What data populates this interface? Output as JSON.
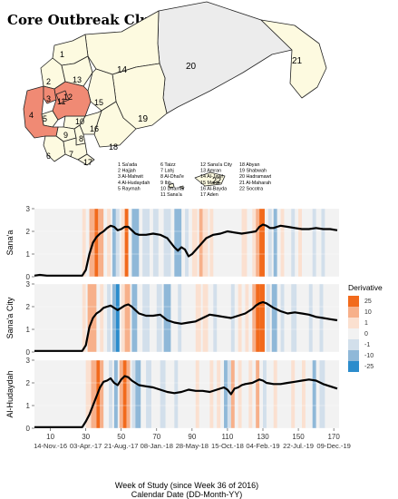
{
  "figure_title": "Core Outbreak Cluster",
  "map": {
    "region_numbers": [
      "1",
      "2",
      "3",
      "4",
      "5",
      "6",
      "7",
      "8",
      "9",
      "10",
      "11",
      "12",
      "13",
      "14",
      "15",
      "16",
      "17",
      "18",
      "19",
      "20",
      "21",
      "22"
    ],
    "highlighted_regions": [
      "3",
      "4",
      "11",
      "12"
    ],
    "legend_col1": [
      "1 Sa'ada",
      "2 Hajjah",
      "3 Al-Mahwit",
      "4 Al-Hudaydah",
      "5 Raymah"
    ],
    "legend_col2": [
      "6 Taizz",
      "7 Lahj",
      "8 Al-Dhal'e",
      "9 Ibb",
      "10 Dhamar",
      "11 Sana'a"
    ],
    "legend_col3": [
      "12 Sana'a City",
      "13 Amran",
      "14 Al-Jawf",
      "15 Marib",
      "16 Al-Bayda",
      "17 Aden"
    ],
    "legend_col4": [
      "18 Abyan",
      "19 Shabwah",
      "20 Hadramawt",
      "21 Al-Maharah",
      "22 Socotra"
    ],
    "colors": {
      "highlight": "#f08a74",
      "base": "#fdfae0",
      "large": "#ececec",
      "outline": "#222222"
    }
  },
  "colorbar": {
    "title": "Derivative",
    "ticks": [
      "25",
      "10",
      "1",
      "0",
      "-1",
      "-10",
      "-25"
    ],
    "colors": [
      "#f26a1c",
      "#f7b08a",
      "#fbe0d0",
      "#f2f2f2",
      "#d2dfeb",
      "#8fb8d8",
      "#2c8ccc"
    ]
  },
  "x_axis": {
    "xlabel_line1": "Week of Study (since Week 36 of 2016)",
    "xlabel_line2": "Calendar Date (DD-Month-YY)",
    "week_ticks": [
      "10",
      "30",
      "50",
      "70",
      "90",
      "110",
      "130",
      "150",
      "170"
    ],
    "date_ticks": [
      "14-Nov.-16",
      "03-Apr.-17",
      "21-Aug.-17",
      "08-Jan.-18",
      "28-May-18",
      "15-Oct.-18",
      "04-Feb.-19",
      "22-Jul.-19",
      "09-Dec.-19"
    ]
  },
  "chart_data": [
    {
      "type": "line",
      "ylabel": "Sana'a",
      "xlim": [
        1,
        173
      ],
      "ylim": [
        0,
        3
      ],
      "yticks": [
        "0",
        "1",
        "2",
        "3"
      ],
      "x": [
        1,
        4,
        8,
        12,
        16,
        20,
        24,
        28,
        30,
        32,
        34,
        36,
        38,
        40,
        42,
        44,
        46,
        48,
        50,
        52,
        54,
        56,
        58,
        60,
        64,
        68,
        72,
        76,
        80,
        82,
        84,
        86,
        88,
        90,
        94,
        98,
        102,
        106,
        110,
        114,
        118,
        122,
        126,
        128,
        130,
        132,
        134,
        136,
        138,
        140,
        144,
        148,
        152,
        156,
        160,
        164,
        168,
        172
      ],
      "y": [
        0.05,
        0.08,
        0.05,
        0.05,
        0.05,
        0.05,
        0.05,
        0.05,
        0.3,
        1.0,
        1.5,
        1.75,
        1.9,
        2.0,
        2.15,
        2.25,
        2.2,
        2.05,
        2.1,
        2.2,
        2.2,
        2.05,
        1.9,
        1.85,
        1.85,
        1.9,
        1.85,
        1.7,
        1.3,
        1.15,
        1.3,
        1.2,
        0.9,
        1.0,
        1.35,
        1.7,
        1.85,
        1.9,
        2.0,
        1.95,
        1.9,
        1.95,
        2.0,
        2.2,
        2.3,
        2.25,
        2.15,
        2.15,
        2.2,
        2.25,
        2.2,
        2.15,
        2.1,
        2.1,
        2.15,
        2.1,
        2.1,
        2.05
      ]
    },
    {
      "type": "line",
      "ylabel": "Sana'a City",
      "xlim": [
        1,
        173
      ],
      "ylim": [
        0,
        3
      ],
      "yticks": [
        "0",
        "1",
        "2",
        "3"
      ],
      "x": [
        1,
        4,
        8,
        12,
        16,
        20,
        24,
        28,
        30,
        32,
        34,
        36,
        38,
        40,
        42,
        44,
        46,
        48,
        50,
        52,
        54,
        56,
        58,
        60,
        64,
        68,
        72,
        76,
        80,
        84,
        88,
        92,
        96,
        100,
        104,
        108,
        112,
        116,
        120,
        124,
        126,
        128,
        130,
        132,
        134,
        136,
        140,
        144,
        148,
        152,
        156,
        160,
        164,
        168,
        172
      ],
      "y": [
        0.05,
        0.05,
        0.05,
        0.05,
        0.05,
        0.05,
        0.05,
        0.05,
        0.3,
        1.1,
        1.5,
        1.7,
        1.8,
        1.95,
        2.0,
        2.05,
        1.95,
        1.85,
        1.95,
        2.05,
        2.1,
        2.0,
        1.85,
        1.7,
        1.6,
        1.6,
        1.65,
        1.4,
        1.3,
        1.25,
        1.3,
        1.35,
        1.5,
        1.65,
        1.6,
        1.55,
        1.5,
        1.6,
        1.7,
        1.9,
        2.05,
        2.15,
        2.2,
        2.15,
        2.05,
        1.95,
        1.8,
        1.7,
        1.75,
        1.7,
        1.65,
        1.55,
        1.5,
        1.45,
        1.4
      ]
    },
    {
      "type": "line",
      "ylabel": "Al-Hudaydah",
      "xlim": [
        1,
        173
      ],
      "ylim": [
        0,
        3
      ],
      "yticks": [
        "0",
        "1",
        "2",
        "3"
      ],
      "x": [
        1,
        4,
        8,
        12,
        16,
        20,
        24,
        28,
        30,
        32,
        34,
        36,
        38,
        40,
        42,
        44,
        46,
        48,
        50,
        52,
        54,
        56,
        58,
        60,
        64,
        68,
        72,
        76,
        80,
        84,
        88,
        92,
        96,
        100,
        104,
        108,
        110,
        112,
        114,
        116,
        118,
        120,
        124,
        128,
        130,
        132,
        136,
        140,
        144,
        148,
        152,
        156,
        160,
        164,
        168,
        172
      ],
      "y": [
        0.05,
        0.05,
        0.05,
        0.05,
        0.05,
        0.05,
        0.05,
        0.05,
        0.3,
        0.6,
        1.0,
        1.4,
        1.8,
        2.05,
        2.1,
        2.2,
        2.0,
        1.9,
        2.15,
        2.3,
        2.25,
        2.1,
        2.0,
        1.9,
        1.85,
        1.8,
        1.7,
        1.6,
        1.55,
        1.6,
        1.7,
        1.65,
        1.65,
        1.6,
        1.7,
        1.8,
        1.7,
        1.5,
        1.75,
        1.8,
        1.9,
        1.95,
        2.0,
        2.15,
        2.1,
        2.0,
        1.95,
        1.95,
        2.0,
        2.05,
        2.1,
        2.15,
        2.1,
        1.95,
        1.85,
        1.75
      ]
    }
  ],
  "derivative_bands": [
    [
      {
        "x0": 28,
        "x1": 30,
        "c": "#fbe0d0"
      },
      {
        "x0": 32,
        "x1": 35,
        "c": "#f7b08a"
      },
      {
        "x0": 35,
        "x1": 37,
        "c": "#f26a1c"
      },
      {
        "x0": 37,
        "x1": 40,
        "c": "#f7b08a"
      },
      {
        "x0": 42,
        "x1": 44,
        "c": "#fbe0d0"
      },
      {
        "x0": 45,
        "x1": 47,
        "c": "#8fb8d8"
      },
      {
        "x0": 47,
        "x1": 49,
        "c": "#d2dfeb"
      },
      {
        "x0": 50,
        "x1": 52,
        "c": "#fbe0d0"
      },
      {
        "x0": 52,
        "x1": 54,
        "c": "#f26a1c"
      },
      {
        "x0": 56,
        "x1": 60,
        "c": "#8fb8d8"
      },
      {
        "x0": 62,
        "x1": 66,
        "c": "#d2dfeb"
      },
      {
        "x0": 68,
        "x1": 71,
        "c": "#d2dfeb"
      },
      {
        "x0": 74,
        "x1": 78,
        "c": "#d2dfeb"
      },
      {
        "x0": 80,
        "x1": 84,
        "c": "#8fb8d8"
      },
      {
        "x0": 86,
        "x1": 88,
        "c": "#d2dfeb"
      },
      {
        "x0": 90,
        "x1": 93,
        "c": "#fbe0d0"
      },
      {
        "x0": 94,
        "x1": 96,
        "c": "#f7b08a"
      },
      {
        "x0": 96,
        "x1": 99,
        "c": "#fbe0d0"
      },
      {
        "x0": 100,
        "x1": 102,
        "c": "#fbe0d0"
      },
      {
        "x0": 118,
        "x1": 121,
        "c": "#fbe0d0"
      },
      {
        "x0": 124,
        "x1": 126,
        "c": "#fbe0d0"
      },
      {
        "x0": 126,
        "x1": 128,
        "c": "#f7b08a"
      },
      {
        "x0": 128,
        "x1": 131,
        "c": "#f26a1c"
      },
      {
        "x0": 133,
        "x1": 135,
        "c": "#d2dfeb"
      },
      {
        "x0": 136,
        "x1": 138,
        "c": "#8fb8d8"
      },
      {
        "x0": 140,
        "x1": 142,
        "c": "#fbe0d0"
      },
      {
        "x0": 146,
        "x1": 148,
        "c": "#d2dfeb"
      },
      {
        "x0": 150,
        "x1": 152,
        "c": "#fbe0d0"
      },
      {
        "x0": 158,
        "x1": 160,
        "c": "#d2dfeb"
      },
      {
        "x0": 163,
        "x1": 165,
        "c": "#d2dfeb"
      }
    ],
    [
      {
        "x0": 28,
        "x1": 30,
        "c": "#fbe0d0"
      },
      {
        "x0": 31,
        "x1": 33,
        "c": "#f7b08a"
      },
      {
        "x0": 33,
        "x1": 36,
        "c": "#f7b08a"
      },
      {
        "x0": 38,
        "x1": 40,
        "c": "#fbe0d0"
      },
      {
        "x0": 42,
        "x1": 44,
        "c": "#d2dfeb"
      },
      {
        "x0": 45,
        "x1": 47,
        "c": "#8fb8d8"
      },
      {
        "x0": 47,
        "x1": 49,
        "c": "#2c8ccc"
      },
      {
        "x0": 50,
        "x1": 52,
        "c": "#fbe0d0"
      },
      {
        "x0": 52,
        "x1": 55,
        "c": "#f7b08a"
      },
      {
        "x0": 56,
        "x1": 59,
        "c": "#8fb8d8"
      },
      {
        "x0": 62,
        "x1": 66,
        "c": "#d2dfeb"
      },
      {
        "x0": 70,
        "x1": 73,
        "c": "#d2dfeb"
      },
      {
        "x0": 74,
        "x1": 78,
        "c": "#8fb8d8"
      },
      {
        "x0": 82,
        "x1": 84,
        "c": "#d2dfeb"
      },
      {
        "x0": 92,
        "x1": 95,
        "c": "#fbe0d0"
      },
      {
        "x0": 96,
        "x1": 99,
        "c": "#fbe0d0"
      },
      {
        "x0": 102,
        "x1": 104,
        "c": "#d2dfeb"
      },
      {
        "x0": 112,
        "x1": 114,
        "c": "#d2dfeb"
      },
      {
        "x0": 116,
        "x1": 118,
        "c": "#fbe0d0"
      },
      {
        "x0": 120,
        "x1": 122,
        "c": "#fbe0d0"
      },
      {
        "x0": 124,
        "x1": 126,
        "c": "#f7b08a"
      },
      {
        "x0": 126,
        "x1": 128,
        "c": "#f26a1c"
      },
      {
        "x0": 128,
        "x1": 131,
        "c": "#f26a1c"
      },
      {
        "x0": 132,
        "x1": 134,
        "c": "#d2dfeb"
      },
      {
        "x0": 135,
        "x1": 138,
        "c": "#8fb8d8"
      },
      {
        "x0": 140,
        "x1": 142,
        "c": "#d2dfeb"
      },
      {
        "x0": 146,
        "x1": 149,
        "c": "#d2dfeb"
      },
      {
        "x0": 156,
        "x1": 158,
        "c": "#d2dfeb"
      },
      {
        "x0": 162,
        "x1": 164,
        "c": "#d2dfeb"
      }
    ],
    [
      {
        "x0": 30,
        "x1": 33,
        "c": "#fbe0d0"
      },
      {
        "x0": 33,
        "x1": 36,
        "c": "#f7b08a"
      },
      {
        "x0": 36,
        "x1": 38,
        "c": "#f26a1c"
      },
      {
        "x0": 38,
        "x1": 40,
        "c": "#f7b08a"
      },
      {
        "x0": 43,
        "x1": 45,
        "c": "#d2dfeb"
      },
      {
        "x0": 46,
        "x1": 48,
        "c": "#8fb8d8"
      },
      {
        "x0": 49,
        "x1": 51,
        "c": "#f7b08a"
      },
      {
        "x0": 51,
        "x1": 53,
        "c": "#f26a1c"
      },
      {
        "x0": 53,
        "x1": 55,
        "c": "#f7b08a"
      },
      {
        "x0": 56,
        "x1": 58,
        "c": "#d2dfeb"
      },
      {
        "x0": 58,
        "x1": 61,
        "c": "#8fb8d8"
      },
      {
        "x0": 64,
        "x1": 67,
        "c": "#d2dfeb"
      },
      {
        "x0": 72,
        "x1": 75,
        "c": "#d2dfeb"
      },
      {
        "x0": 80,
        "x1": 82,
        "c": "#d2dfeb"
      },
      {
        "x0": 92,
        "x1": 94,
        "c": "#fbe0d0"
      },
      {
        "x0": 100,
        "x1": 102,
        "c": "#fbe0d0"
      },
      {
        "x0": 104,
        "x1": 106,
        "c": "#fbe0d0"
      },
      {
        "x0": 108,
        "x1": 110,
        "c": "#8fb8d8"
      },
      {
        "x0": 110,
        "x1": 112,
        "c": "#d2dfeb"
      },
      {
        "x0": 112,
        "x1": 114,
        "c": "#f7b08a"
      },
      {
        "x0": 116,
        "x1": 118,
        "c": "#fbe0d0"
      },
      {
        "x0": 122,
        "x1": 124,
        "c": "#fbe0d0"
      },
      {
        "x0": 126,
        "x1": 128,
        "c": "#f7b08a"
      },
      {
        "x0": 130,
        "x1": 132,
        "c": "#d2dfeb"
      },
      {
        "x0": 136,
        "x1": 138,
        "c": "#fbe0d0"
      },
      {
        "x0": 146,
        "x1": 148,
        "c": "#fbe0d0"
      },
      {
        "x0": 152,
        "x1": 154,
        "c": "#fbe0d0"
      },
      {
        "x0": 158,
        "x1": 160,
        "c": "#8fb8d8"
      },
      {
        "x0": 162,
        "x1": 165,
        "c": "#d2dfeb"
      }
    ]
  ]
}
